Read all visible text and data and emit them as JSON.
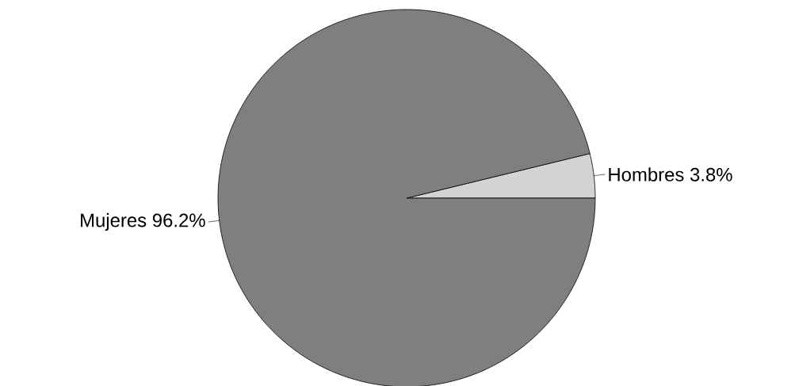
{
  "chart_data": {
    "type": "pie",
    "categories": [
      "Hombres",
      "Mujeres"
    ],
    "values": [
      3.8,
      96.2
    ],
    "value_labels": [
      "3.8%",
      "96.2%"
    ],
    "colors": [
      "#d3d3d3",
      "#7f7f7f"
    ]
  }
}
